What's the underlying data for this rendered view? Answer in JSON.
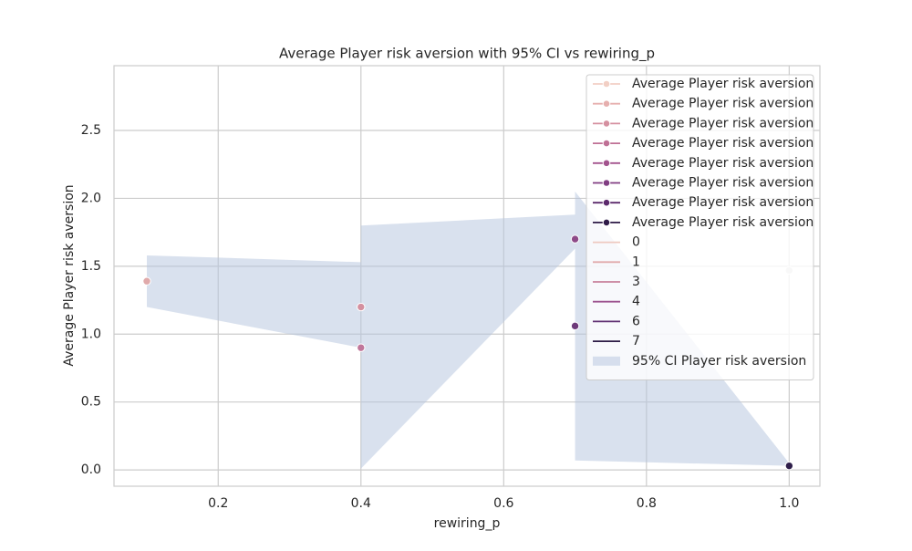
{
  "chart_data": {
    "type": "scatter",
    "title": "Average Player risk aversion with 95% CI vs rewiring_p",
    "x_label": "rewiring_p",
    "y_label": "Average Player risk aversion",
    "xlim": [
      0.054,
      1.043
    ],
    "ylim": [
      -0.12,
      2.977
    ],
    "xticks": [
      {
        "value": 0.2,
        "label": "0.2"
      },
      {
        "value": 0.4,
        "label": "0.4"
      },
      {
        "value": 0.6,
        "label": "0.6"
      },
      {
        "value": 0.8,
        "label": "0.8"
      },
      {
        "value": 1.0,
        "label": "1.0"
      }
    ],
    "yticks": [
      {
        "value": 0.0,
        "label": "0.0"
      },
      0.5,
      {
        "value": 1.0,
        "label": "1.0"
      },
      1.5,
      {
        "value": 2.0,
        "label": "2.0"
      },
      2.5
    ],
    "grid": true,
    "points": {
      "x": [
        0.1,
        0.4,
        0.4,
        0.7,
        0.7,
        1.0,
        1.0
      ],
      "y": [
        1.39,
        1.2,
        0.9,
        1.7,
        1.06,
        1.47,
        0.03
      ],
      "colors": [
        "#e0aaab",
        "#d4909f",
        "#c0779b",
        "#8e4a88",
        "#6e3a7a",
        "#dddddd",
        "#2e1e4a"
      ]
    },
    "ci": {
      "name": "95% CI Player risk aversion",
      "color": "#b4c3de",
      "x": [
        0.1,
        0.4,
        0.4,
        0.7,
        0.7,
        1.0
      ],
      "lower": [
        1.2,
        0.9,
        0.01,
        1.63,
        0.07,
        0.03
      ],
      "upper": [
        1.58,
        1.53,
        1.8,
        1.88,
        2.05,
        0.05
      ]
    },
    "legend": [
      {
        "label": "Average Player risk aversion",
        "color": "#f2cfc4",
        "marker": true
      },
      {
        "label": "Average Player risk aversion",
        "color": "#e6afae",
        "marker": true
      },
      {
        "label": "Average Player risk aversion",
        "color": "#d590a0",
        "marker": true
      },
      {
        "label": "Average Player risk aversion",
        "color": "#bf7095",
        "marker": true
      },
      {
        "label": "Average Player risk aversion",
        "color": "#a3548e",
        "marker": true
      },
      {
        "label": "Average Player risk aversion",
        "color": "#813e82",
        "marker": true
      },
      {
        "label": "Average Player risk aversion",
        "color": "#5c2a6c",
        "marker": true
      },
      {
        "label": "Average Player risk aversion",
        "color": "#2e1a47",
        "marker": true
      },
      {
        "label": "0",
        "color": "#eec9c0",
        "marker": false
      },
      {
        "label": "1",
        "color": "#e1aaab",
        "marker": false
      },
      {
        "label": "3",
        "color": "#c9809b",
        "marker": false
      },
      {
        "label": "4",
        "color": "#9d5590",
        "marker": false
      },
      {
        "label": "6",
        "color": "#5f2f72",
        "marker": false
      },
      {
        "label": "7",
        "color": "#2c1b45",
        "marker": false
      }
    ],
    "legend_position": "upper right"
  }
}
